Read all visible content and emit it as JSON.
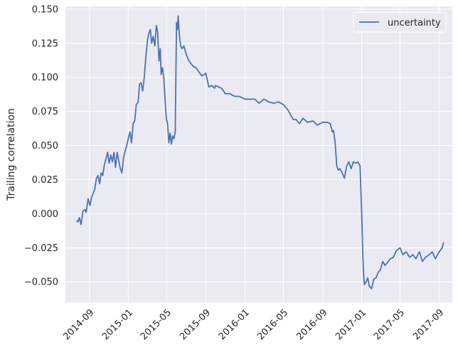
{
  "chart_data": {
    "type": "line",
    "title": "",
    "xlabel": "",
    "ylabel": "Trailing correlation",
    "ylim": [
      -0.065,
      0.152
    ],
    "xlim": [
      "2014-06-18",
      "2017-10-12"
    ],
    "yticks": [
      "−0.050",
      "−0.025",
      "0.000",
      "0.025",
      "0.050",
      "0.075",
      "0.100",
      "0.125",
      "0.150"
    ],
    "ytick_values": [
      -0.05,
      -0.025,
      0.0,
      0.025,
      0.05,
      0.075,
      0.1,
      0.125,
      0.15
    ],
    "xticks": [
      "2014-09",
      "2015-01",
      "2015-05",
      "2015-09",
      "2016-01",
      "2016-05",
      "2016-09",
      "2017-01",
      "2017-05",
      "2017-09"
    ],
    "xtick_dates": [
      "2014-09-01",
      "2015-01-01",
      "2015-05-01",
      "2015-09-01",
      "2016-01-01",
      "2016-05-01",
      "2016-09-01",
      "2017-01-01",
      "2017-05-01",
      "2017-09-01"
    ],
    "grid": true,
    "legend_position": "top-right",
    "series": [
      {
        "name": "uncertainty",
        "color": "#4c72b0",
        "x": [
          "2014-07-23",
          "2014-07-27",
          "2014-08-01",
          "2014-08-06",
          "2014-08-12",
          "2014-08-18",
          "2014-08-22",
          "2014-08-28",
          "2014-09-03",
          "2014-09-08",
          "2014-09-13",
          "2014-09-18",
          "2014-09-23",
          "2014-09-28",
          "2014-10-03",
          "2014-10-08",
          "2014-10-13",
          "2014-10-18",
          "2014-10-23",
          "2014-10-28",
          "2014-11-02",
          "2014-11-07",
          "2014-11-12",
          "2014-11-17",
          "2014-11-22",
          "2014-11-27",
          "2014-12-02",
          "2014-12-07",
          "2014-12-12",
          "2014-12-17",
          "2014-12-22",
          "2014-12-27",
          "2015-01-01",
          "2015-01-06",
          "2015-01-11",
          "2015-01-16",
          "2015-01-21",
          "2015-01-26",
          "2015-02-01",
          "2015-02-05",
          "2015-02-10",
          "2015-02-15",
          "2015-02-20",
          "2015-02-25",
          "2015-03-02",
          "2015-03-06",
          "2015-03-11",
          "2015-03-15",
          "2015-03-20",
          "2015-03-25",
          "2015-03-30",
          "2015-04-03",
          "2015-04-07",
          "2015-04-11",
          "2015-04-14",
          "2015-04-18",
          "2015-04-22",
          "2015-04-26",
          "2015-04-30",
          "2015-05-04",
          "2015-05-08",
          "2015-05-12",
          "2015-05-16",
          "2015-05-20",
          "2015-05-24",
          "2015-05-28",
          "2015-06-01",
          "2015-06-04",
          "2015-06-06",
          "2015-06-10",
          "2015-06-14",
          "2015-06-18",
          "2015-06-24",
          "2015-06-30",
          "2015-07-08",
          "2015-07-16",
          "2015-07-24",
          "2015-08-01",
          "2015-08-10",
          "2015-08-20",
          "2015-09-01",
          "2015-09-10",
          "2015-09-20",
          "2015-09-28",
          "2015-10-01",
          "2015-10-10",
          "2015-10-20",
          "2015-11-01",
          "2015-11-15",
          "2015-12-01",
          "2015-12-15",
          "2016-01-01",
          "2016-01-15",
          "2016-02-01",
          "2016-02-15",
          "2016-03-01",
          "2016-03-15",
          "2016-04-01",
          "2016-04-15",
          "2016-05-01",
          "2016-05-15",
          "2016-06-01",
          "2016-06-10",
          "2016-06-20",
          "2016-07-01",
          "2016-07-15",
          "2016-08-01",
          "2016-08-15",
          "2016-09-01",
          "2016-09-15",
          "2016-09-25",
          "2016-10-01",
          "2016-10-05",
          "2016-10-10",
          "2016-10-15",
          "2016-10-20",
          "2016-10-25",
          "2016-11-01",
          "2016-11-08",
          "2016-11-15",
          "2016-11-22",
          "2016-11-29",
          "2016-12-06",
          "2016-12-13",
          "2016-12-20",
          "2016-12-27",
          "2017-01-01",
          "2017-01-05",
          "2017-01-08",
          "2017-01-10",
          "2017-01-15",
          "2017-01-20",
          "2017-01-25",
          "2017-02-01",
          "2017-02-08",
          "2017-02-15",
          "2017-02-22",
          "2017-03-01",
          "2017-03-08",
          "2017-03-15",
          "2017-03-22",
          "2017-04-01",
          "2017-04-10",
          "2017-04-20",
          "2017-05-01",
          "2017-05-10",
          "2017-05-20",
          "2017-06-01",
          "2017-06-10",
          "2017-06-20",
          "2017-07-01",
          "2017-07-10",
          "2017-07-20",
          "2017-08-01",
          "2017-08-10",
          "2017-08-20",
          "2017-09-01",
          "2017-09-10",
          "2017-09-15"
        ],
        "y": [
          -0.005,
          -0.006,
          -0.003,
          -0.008,
          0.002,
          0.003,
          0.001,
          0.011,
          0.006,
          0.012,
          0.015,
          0.018,
          0.026,
          0.028,
          0.022,
          0.03,
          0.028,
          0.036,
          0.04,
          0.045,
          0.037,
          0.043,
          0.038,
          0.045,
          0.034,
          0.045,
          0.039,
          0.033,
          0.03,
          0.041,
          0.046,
          0.05,
          0.055,
          0.06,
          0.052,
          0.066,
          0.068,
          0.08,
          0.082,
          0.095,
          0.096,
          0.09,
          0.1,
          0.115,
          0.127,
          0.132,
          0.135,
          0.125,
          0.13,
          0.123,
          0.138,
          0.133,
          0.112,
          0.121,
          0.102,
          0.107,
          0.1,
          0.085,
          0.07,
          0.066,
          0.052,
          0.059,
          0.051,
          0.057,
          0.055,
          0.06,
          0.14,
          0.135,
          0.145,
          0.131,
          0.123,
          0.121,
          0.123,
          0.118,
          0.113,
          0.11,
          0.108,
          0.107,
          0.104,
          0.101,
          0.103,
          0.093,
          0.094,
          0.092,
          0.094,
          0.093,
          0.092,
          0.088,
          0.088,
          0.086,
          0.086,
          0.084,
          0.084,
          0.084,
          0.081,
          0.084,
          0.082,
          0.081,
          0.082,
          0.08,
          0.076,
          0.069,
          0.069,
          0.066,
          0.07,
          0.067,
          0.068,
          0.065,
          0.067,
          0.067,
          0.066,
          0.06,
          0.061,
          0.052,
          0.035,
          0.032,
          0.033,
          0.03,
          0.026,
          0.035,
          0.038,
          0.033,
          0.038,
          0.037,
          0.038,
          0.035,
          0.001,
          -0.033,
          -0.048,
          -0.052,
          -0.05,
          -0.047,
          -0.053,
          -0.055,
          -0.048,
          -0.047,
          -0.043,
          -0.041,
          -0.035,
          -0.038,
          -0.036,
          -0.033,
          -0.032,
          -0.027,
          -0.025,
          -0.03,
          -0.028,
          -0.032,
          -0.03,
          -0.033,
          -0.028,
          -0.035,
          -0.032,
          -0.03,
          -0.028,
          -0.033,
          -0.028,
          -0.025,
          -0.021
        ]
      }
    ]
  }
}
